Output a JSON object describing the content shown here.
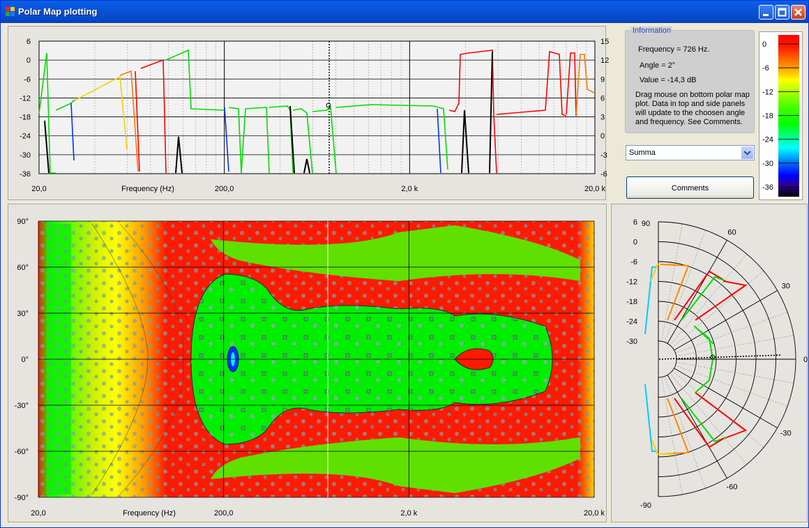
{
  "window": {
    "title": "Polar Map plotting"
  },
  "top_plot": {
    "left_ticks": [
      "6",
      "0",
      "-6",
      "-12",
      "-18",
      "-24",
      "-30",
      "-36"
    ],
    "right_ticks": [
      "15",
      "12",
      "9",
      "6",
      "3",
      "0",
      "-3",
      "-6"
    ],
    "x_ticks": [
      "20,0",
      "200,0",
      "2,0 k",
      "20,0 k"
    ],
    "xlabel": "Frequency (Hz)"
  },
  "info": {
    "legend": "Information",
    "frequency": "Frequency = 726 Hz.",
    "angle": "Angle = 2°",
    "value": "Value = -14,3 dB",
    "help": "Drag mouse on bottom polar map plot.  Data in top and side panels will update to the choosen angle and frequency.  See Comments."
  },
  "selector": {
    "value": "Summa"
  },
  "comments_button": {
    "label": "Comments"
  },
  "colorbar": {
    "ticks": [
      "0",
      "-6",
      "-12",
      "-18",
      "-24",
      "-30",
      "-36"
    ]
  },
  "map_plot": {
    "y_ticks": [
      "90°",
      "60°",
      "30°",
      "0°",
      "-30°",
      "-60°",
      "-90°"
    ],
    "x_ticks": [
      "20,0",
      "200,0",
      "2,0 k",
      "20,0 k"
    ],
    "xlabel": "Frequency (Hz)"
  },
  "polar_plot": {
    "r_ticks": [
      "6",
      "0",
      "-6",
      "-12",
      "-18",
      "-24",
      "-30"
    ],
    "angle_labels": [
      "90",
      "60",
      "30",
      "0",
      "-30",
      "-60",
      "-90"
    ]
  },
  "colors": {
    "title_bar": "#0a5fe8",
    "max": "#ff0000",
    "mid": "#00ff00",
    "min": "#000000"
  }
}
